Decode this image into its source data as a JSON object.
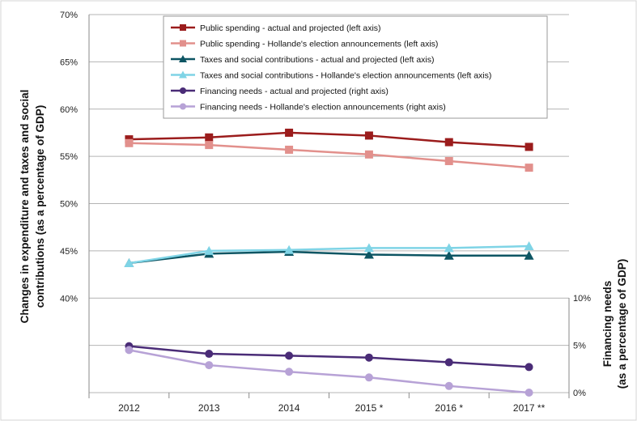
{
  "chart_data": {
    "type": "line",
    "categories": [
      "2012",
      "2013",
      "2014",
      "2015 *",
      "2016 *",
      "2017 **"
    ],
    "left_axis": {
      "label_line1": "Changes in expenditure and taxes and social",
      "label_line2": "contributions (as a percentage of GDP)",
      "ticks": [
        "40%",
        "45%",
        "50%",
        "55%",
        "60%",
        "65%",
        "70%"
      ],
      "tick_values": [
        40,
        45,
        50,
        55,
        60,
        65,
        70
      ],
      "range": [
        30,
        70
      ]
    },
    "right_axis": {
      "label_line1": "Financing needs",
      "label_line2": "(as a percentage of GDP)",
      "ticks": [
        "0%",
        "5%",
        "10%"
      ],
      "tick_values": [
        0,
        5,
        10
      ],
      "range": [
        0,
        10
      ]
    },
    "grid": true,
    "legend_position": "top-center",
    "series": [
      {
        "name": "Public spending - actual and projected (left axis)",
        "axis": "left",
        "color": "#9b1c1c",
        "marker": "square",
        "values": [
          56.8,
          57.0,
          57.5,
          57.2,
          56.5,
          56.0
        ]
      },
      {
        "name": "Public spending - Hollande's election announcements (left axis)",
        "axis": "left",
        "color": "#e2908c",
        "marker": "square",
        "values": [
          56.4,
          56.2,
          55.7,
          55.2,
          54.5,
          53.8
        ]
      },
      {
        "name": "Taxes and social contributions - actual and projected (left axis)",
        "axis": "left",
        "color": "#0d5563",
        "marker": "triangle",
        "values": [
          43.7,
          44.7,
          44.9,
          44.6,
          44.5,
          44.5
        ]
      },
      {
        "name": "Taxes and social contributions - Hollande's election announcements (left axis)",
        "axis": "left",
        "color": "#7fd4e6",
        "marker": "triangle",
        "values": [
          43.7,
          45.0,
          45.1,
          45.3,
          45.3,
          45.5
        ]
      },
      {
        "name": "Financing needs - actual and projected (right axis)",
        "axis": "right",
        "color": "#4a2c77",
        "marker": "circle",
        "values": [
          4.9,
          4.1,
          3.9,
          3.7,
          3.2,
          2.7
        ]
      },
      {
        "name": "Financing needs - Hollande's election announcements (right axis)",
        "axis": "right",
        "color": "#b7a2d6",
        "marker": "circle",
        "values": [
          4.5,
          2.9,
          2.2,
          1.6,
          0.7,
          0.0
        ]
      }
    ]
  }
}
